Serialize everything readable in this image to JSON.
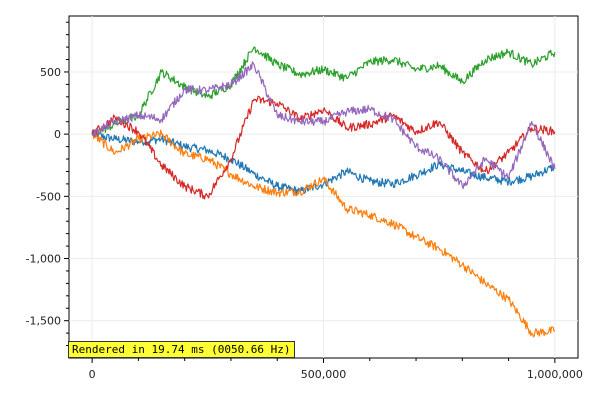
{
  "chart_data": {
    "type": "line",
    "title": "",
    "xlabel": "",
    "ylabel": "",
    "xlim": [
      -50000,
      1050000
    ],
    "ylim": [
      -1800,
      950
    ],
    "grid": true,
    "x_ticks": [
      0,
      500000,
      1000000
    ],
    "x_tick_labels": [
      "0",
      "500,000",
      "1,000,000"
    ],
    "y_ticks": [
      500,
      0,
      -500,
      -1000,
      -1500
    ],
    "y_tick_labels": [
      "500",
      "0",
      "-500",
      "-1,000",
      "-1,500"
    ],
    "series": [
      {
        "color": "#1f77b4",
        "x": [
          0,
          50000,
          100000,
          150000,
          200000,
          250000,
          300000,
          350000,
          400000,
          450000,
          500000,
          550000,
          600000,
          650000,
          700000,
          750000,
          800000,
          850000,
          900000,
          950000,
          1000000
        ],
        "values": [
          0,
          -40,
          -60,
          -40,
          -100,
          -130,
          -200,
          -320,
          -420,
          -460,
          -400,
          -300,
          -380,
          -400,
          -330,
          -240,
          -300,
          -350,
          -380,
          -340,
          -260
        ]
      },
      {
        "color": "#ff7f0e",
        "x": [
          0,
          50000,
          100000,
          150000,
          200000,
          250000,
          300000,
          350000,
          400000,
          450000,
          500000,
          550000,
          600000,
          650000,
          700000,
          750000,
          800000,
          850000,
          900000,
          950000,
          1000000
        ],
        "values": [
          0,
          -150,
          -40,
          0,
          -160,
          -200,
          -320,
          -420,
          -470,
          -460,
          -360,
          -600,
          -650,
          -720,
          -830,
          -920,
          -1050,
          -1200,
          -1330,
          -1600,
          -1580
        ]
      },
      {
        "color": "#2ca02c",
        "x": [
          0,
          50000,
          100000,
          150000,
          200000,
          250000,
          300000,
          350000,
          400000,
          450000,
          500000,
          550000,
          600000,
          650000,
          700000,
          750000,
          800000,
          850000,
          900000,
          950000,
          1000000
        ],
        "values": [
          0,
          80,
          150,
          500,
          380,
          300,
          400,
          700,
          560,
          480,
          520,
          450,
          580,
          600,
          520,
          550,
          420,
          600,
          660,
          560,
          660
        ]
      },
      {
        "color": "#d62728",
        "x": [
          0,
          50000,
          100000,
          150000,
          200000,
          250000,
          300000,
          350000,
          400000,
          450000,
          500000,
          550000,
          600000,
          650000,
          700000,
          750000,
          800000,
          850000,
          900000,
          950000,
          1000000
        ],
        "values": [
          0,
          130,
          20,
          -250,
          -420,
          -500,
          -200,
          280,
          250,
          120,
          200,
          50,
          80,
          150,
          20,
          100,
          -150,
          -300,
          -150,
          50,
          20
        ]
      },
      {
        "color": "#9467bd",
        "x": [
          0,
          50000,
          100000,
          150000,
          200000,
          250000,
          300000,
          350000,
          400000,
          450000,
          500000,
          550000,
          600000,
          650000,
          700000,
          750000,
          800000,
          850000,
          900000,
          950000,
          1000000
        ],
        "values": [
          0,
          100,
          150,
          120,
          360,
          350,
          400,
          560,
          150,
          100,
          100,
          180,
          200,
          120,
          -100,
          -200,
          -420,
          -200,
          -350,
          100,
          -280
        ]
      }
    ]
  },
  "status": {
    "render_text": "Rendered in 19.74 ms (0050.66 Hz)"
  }
}
